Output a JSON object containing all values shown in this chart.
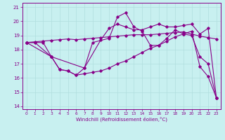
{
  "xlabel": "Windchill (Refroidissement éolien,°C)",
  "xlim": [
    -0.5,
    23.5
  ],
  "ylim": [
    13.8,
    21.3
  ],
  "xticks": [
    0,
    1,
    2,
    3,
    4,
    5,
    6,
    7,
    8,
    9,
    10,
    11,
    12,
    13,
    14,
    15,
    16,
    17,
    18,
    19,
    20,
    21,
    22,
    23
  ],
  "yticks": [
    14,
    15,
    16,
    17,
    18,
    19,
    20,
    21
  ],
  "background_color": "#c8f0f0",
  "line_color": "#880088",
  "grid_color": "#b0dede",
  "line1_x": [
    0,
    1,
    3,
    7,
    8,
    10,
    11,
    12,
    13,
    14,
    15,
    16,
    17,
    18,
    19,
    20,
    21,
    22,
    23
  ],
  "line1_y": [
    18.5,
    18.5,
    17.5,
    16.7,
    18.5,
    18.8,
    20.3,
    20.6,
    19.6,
    19.3,
    18.3,
    18.3,
    18.8,
    19.4,
    19.1,
    19.0,
    17.5,
    17.0,
    14.6
  ],
  "line2_x": [
    0,
    2,
    3,
    4,
    5,
    6,
    7,
    8,
    9,
    10,
    11,
    12,
    13,
    14,
    15,
    16,
    17,
    18,
    19,
    20,
    21,
    22,
    23
  ],
  "line2_y": [
    18.5,
    18.5,
    17.5,
    16.6,
    16.5,
    16.2,
    16.3,
    16.4,
    16.5,
    16.7,
    17.0,
    17.2,
    17.5,
    17.8,
    18.1,
    18.3,
    18.6,
    18.9,
    19.1,
    19.3,
    16.8,
    16.1,
    14.6
  ],
  "line3_x": [
    0,
    1,
    2,
    3,
    4,
    5,
    6,
    7,
    8,
    9,
    10,
    11,
    12,
    13,
    14,
    15,
    16,
    17,
    18,
    19,
    20,
    21,
    22,
    23
  ],
  "line3_y": [
    18.5,
    18.55,
    18.6,
    18.65,
    18.7,
    18.75,
    18.7,
    18.75,
    18.8,
    18.85,
    18.9,
    18.95,
    19.0,
    19.05,
    19.05,
    19.05,
    19.1,
    19.15,
    19.2,
    19.25,
    19.1,
    18.95,
    18.85,
    18.75
  ],
  "line4_x": [
    0,
    3,
    4,
    5,
    6,
    7,
    9,
    10,
    11,
    12,
    13,
    14,
    15,
    16,
    17,
    18,
    19,
    20,
    21,
    22,
    23
  ],
  "line4_y": [
    18.5,
    17.5,
    16.6,
    16.5,
    16.2,
    16.7,
    18.7,
    19.5,
    19.8,
    19.6,
    19.4,
    19.4,
    19.6,
    19.8,
    19.6,
    19.6,
    19.7,
    19.8,
    19.1,
    19.5,
    14.6
  ]
}
